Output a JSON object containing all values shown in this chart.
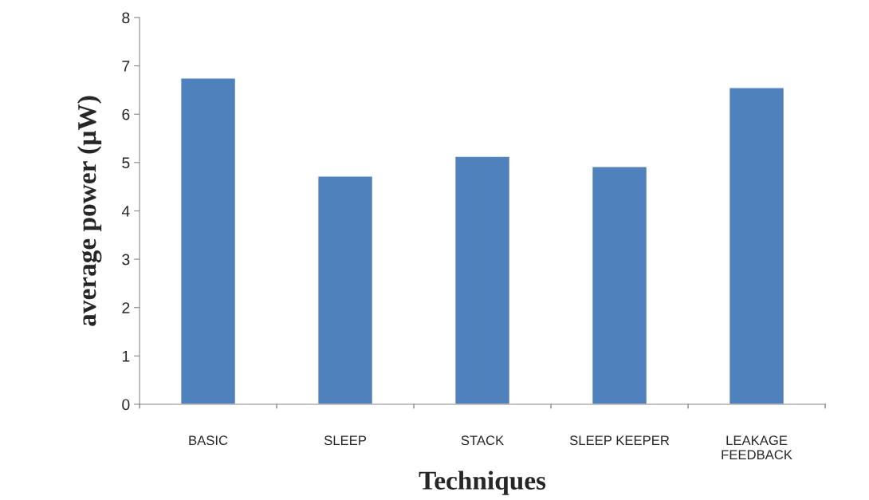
{
  "chart_data": {
    "type": "bar",
    "xlabel": "Techniques",
    "ylabel": "average power (µW)",
    "categories": [
      "BASIC",
      "SLEEP",
      "STACK",
      "SLEEP KEEPER",
      "LEAKAGE\nFEEDBACK"
    ],
    "values": [
      6.75,
      4.72,
      5.13,
      4.92,
      6.55
    ],
    "color": "#4f81bd",
    "ylim": [
      0,
      8
    ],
    "yticks": [
      0,
      1,
      2,
      3,
      4,
      5,
      6,
      7,
      8
    ],
    "grid": false
  }
}
